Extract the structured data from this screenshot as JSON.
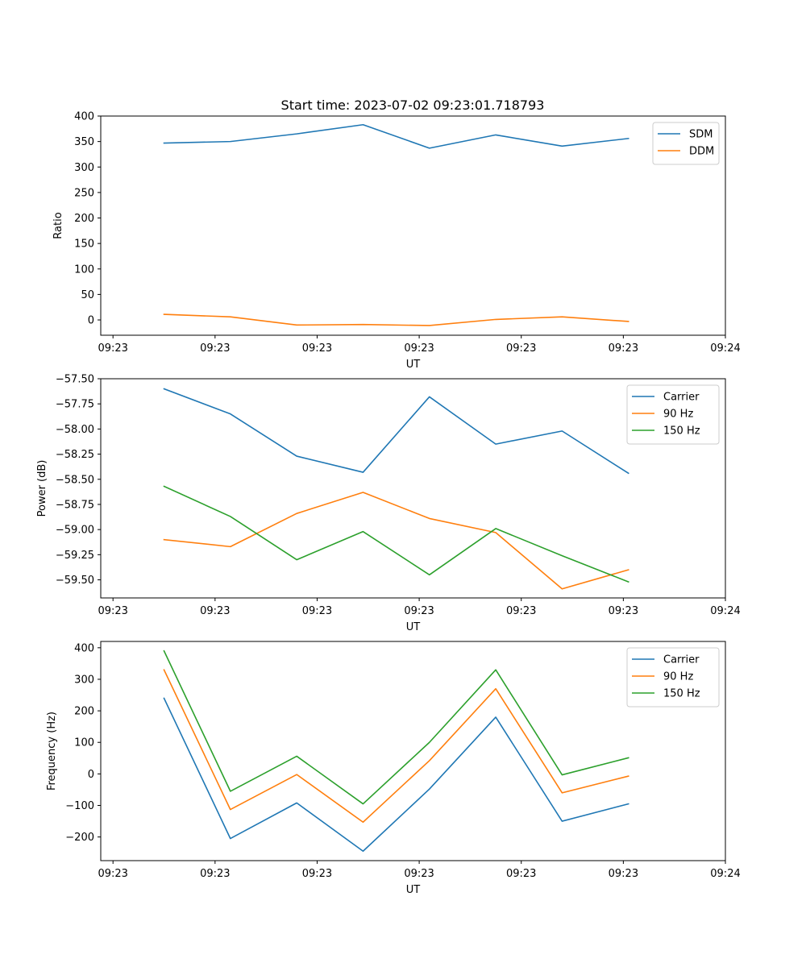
{
  "title": "Start time: 2023-07-02 09:23:01.718793",
  "chart_data": [
    {
      "type": "line",
      "title": "Start time: 2023-07-02 09:23:01.718793",
      "xlabel": "UT",
      "ylabel": "Ratio",
      "x_tick_labels": [
        "09:23",
        "09:23",
        "09:23",
        "09:23",
        "09:23",
        "09:23",
        "09:24"
      ],
      "x_tick_positions": [
        0,
        1,
        2,
        3,
        4,
        5,
        6
      ],
      "xlim": [
        -0.12,
        6.0
      ],
      "x": [
        0.5,
        1.15,
        1.8,
        2.45,
        3.1,
        3.75,
        4.4,
        5.05
      ],
      "ylim": [
        -30,
        400
      ],
      "y_ticks": [
        0,
        50,
        100,
        150,
        200,
        250,
        300,
        350,
        400
      ],
      "legend_position": "top-right",
      "series": [
        {
          "name": "SDM",
          "color": "#1f77b4",
          "values": [
            347,
            350,
            365,
            383,
            337,
            363,
            341,
            356
          ]
        },
        {
          "name": "DDM",
          "color": "#ff7f0e",
          "values": [
            11,
            6,
            -10,
            -9,
            -11,
            1,
            6,
            -3
          ]
        }
      ]
    },
    {
      "type": "line",
      "title": "",
      "xlabel": "UT",
      "ylabel": "Power (dB)",
      "x_tick_labels": [
        "09:23",
        "09:23",
        "09:23",
        "09:23",
        "09:23",
        "09:23",
        "09:24"
      ],
      "x_tick_positions": [
        0,
        1,
        2,
        3,
        4,
        5,
        6
      ],
      "xlim": [
        -0.12,
        6.0
      ],
      "x": [
        0.5,
        1.15,
        1.8,
        2.45,
        3.1,
        3.75,
        4.4,
        5.05
      ],
      "ylim": [
        -59.68,
        -57.5
      ],
      "y_ticks": [
        -57.5,
        -57.75,
        -58.0,
        -58.25,
        -58.5,
        -58.75,
        -59.0,
        -59.25,
        -59.5
      ],
      "y_tick_labels": [
        "−57.50",
        "−57.75",
        "−58.00",
        "−58.25",
        "−58.50",
        "−58.75",
        "−59.00",
        "−59.25",
        "−59.50"
      ],
      "legend_position": "top-right",
      "series": [
        {
          "name": "Carrier",
          "color": "#1f77b4",
          "values": [
            -57.6,
            -57.85,
            -58.27,
            -58.43,
            -57.68,
            -58.15,
            -58.02,
            -58.44
          ]
        },
        {
          "name": "90 Hz",
          "color": "#ff7f0e",
          "values": [
            -59.1,
            -59.17,
            -58.84,
            -58.63,
            -58.89,
            -59.03,
            -59.59,
            -59.4
          ]
        },
        {
          "name": "150 Hz",
          "color": "#2ca02c",
          "values": [
            -58.57,
            -58.87,
            -59.3,
            -59.02,
            -59.45,
            -58.99,
            -59.26,
            -59.52
          ]
        }
      ]
    },
    {
      "type": "line",
      "title": "",
      "xlabel": "UT",
      "ylabel": "Frequency (Hz)",
      "x_tick_labels": [
        "09:23",
        "09:23",
        "09:23",
        "09:23",
        "09:23",
        "09:23",
        "09:24"
      ],
      "x_tick_positions": [
        0,
        1,
        2,
        3,
        4,
        5,
        6
      ],
      "xlim": [
        -0.12,
        6.0
      ],
      "x": [
        0.5,
        1.15,
        1.8,
        2.45,
        3.1,
        3.75,
        4.4,
        5.05
      ],
      "ylim": [
        -275,
        420
      ],
      "y_ticks": [
        -200,
        -100,
        0,
        100,
        200,
        300,
        400
      ],
      "y_tick_labels": [
        "−200",
        "−100",
        "0",
        "100",
        "200",
        "300",
        "400"
      ],
      "legend_position": "top-right",
      "series": [
        {
          "name": "Carrier",
          "color": "#1f77b4",
          "values": [
            240,
            -205,
            -92,
            -245,
            -48,
            180,
            -150,
            -95
          ]
        },
        {
          "name": "90 Hz",
          "color": "#ff7f0e",
          "values": [
            330,
            -113,
            -2,
            -153,
            42,
            270,
            -60,
            -7
          ]
        },
        {
          "name": "150 Hz",
          "color": "#2ca02c",
          "values": [
            390,
            -55,
            56,
            -95,
            100,
            330,
            -3,
            51
          ]
        }
      ]
    }
  ]
}
